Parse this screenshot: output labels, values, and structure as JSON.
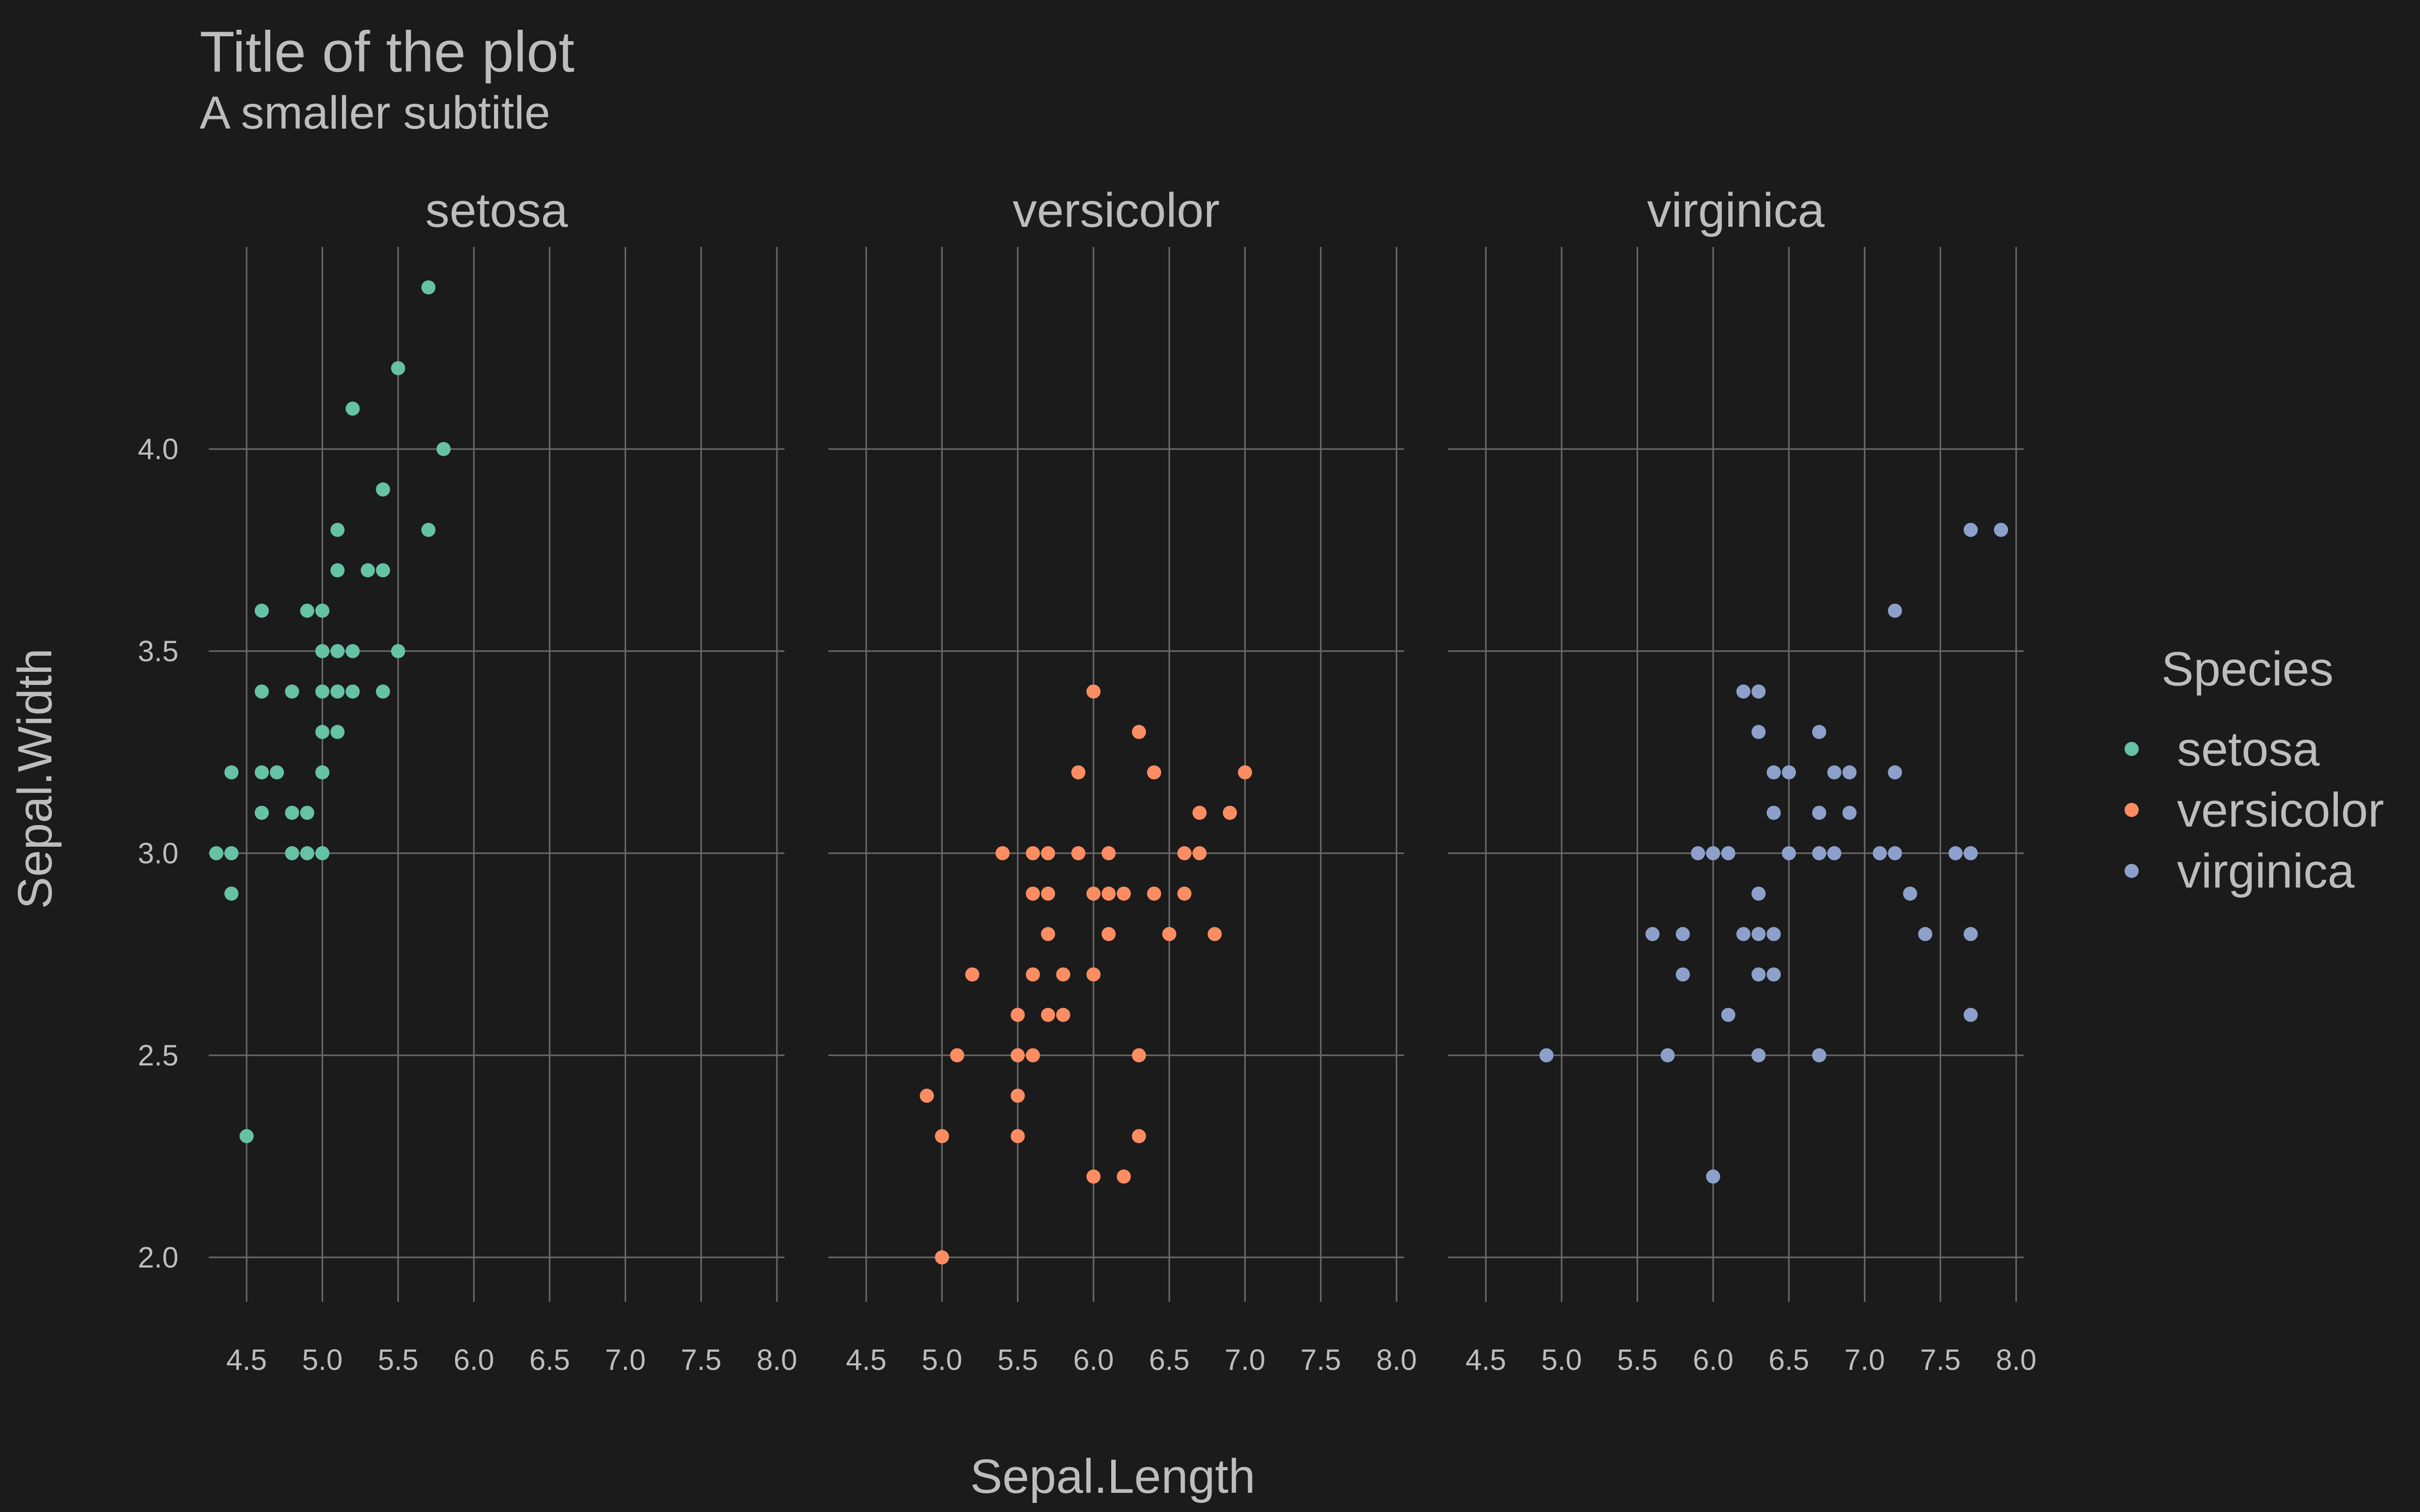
{
  "chart_data": {
    "type": "scatter",
    "title": "Title of the plot",
    "subtitle": "A smaller subtitle",
    "xlabel": "Sepal.Length",
    "ylabel": "Sepal.Width",
    "xlim": [
      4.25,
      8.05
    ],
    "ylim": [
      1.9,
      4.5
    ],
    "x_ticks": [
      "4.5",
      "5.0",
      "5.5",
      "6.0",
      "6.5",
      "7.0",
      "7.5",
      "8.0"
    ],
    "y_ticks": [
      "2.0",
      "2.5",
      "3.0",
      "3.5",
      "4.0"
    ],
    "grid": true,
    "legend": {
      "title": "Species",
      "position": "right"
    },
    "series": [
      {
        "name": "setosa",
        "color": "#66c2a5",
        "points": [
          [
            5.7,
            4.4
          ],
          [
            5.5,
            4.2
          ],
          [
            5.2,
            4.1
          ],
          [
            5.8,
            4.0
          ],
          [
            5.4,
            3.9
          ],
          [
            5.1,
            3.8
          ],
          [
            5.7,
            3.8
          ],
          [
            5.1,
            3.7
          ],
          [
            5.3,
            3.7
          ],
          [
            5.4,
            3.7
          ],
          [
            4.6,
            3.6
          ],
          [
            4.9,
            3.6
          ],
          [
            5.0,
            3.6
          ],
          [
            5.0,
            3.5
          ],
          [
            5.1,
            3.5
          ],
          [
            5.2,
            3.5
          ],
          [
            5.5,
            3.5
          ],
          [
            4.6,
            3.4
          ],
          [
            4.8,
            3.4
          ],
          [
            5.0,
            3.4
          ],
          [
            5.1,
            3.4
          ],
          [
            5.2,
            3.4
          ],
          [
            5.4,
            3.4
          ],
          [
            5.0,
            3.3
          ],
          [
            5.1,
            3.3
          ],
          [
            4.4,
            3.2
          ],
          [
            4.6,
            3.2
          ],
          [
            4.7,
            3.2
          ],
          [
            5.0,
            3.2
          ],
          [
            4.6,
            3.1
          ],
          [
            4.8,
            3.1
          ],
          [
            4.9,
            3.1
          ],
          [
            4.3,
            3.0
          ],
          [
            4.4,
            3.0
          ],
          [
            4.8,
            3.0
          ],
          [
            4.9,
            3.0
          ],
          [
            5.0,
            3.0
          ],
          [
            4.4,
            2.9
          ],
          [
            4.5,
            2.3
          ]
        ]
      },
      {
        "name": "versicolor",
        "color": "#fc8d62",
        "points": [
          [
            6.0,
            3.4
          ],
          [
            6.3,
            3.3
          ],
          [
            5.9,
            3.2
          ],
          [
            6.4,
            3.2
          ],
          [
            7.0,
            3.2
          ],
          [
            6.7,
            3.1
          ],
          [
            6.9,
            3.1
          ],
          [
            5.4,
            3.0
          ],
          [
            5.6,
            3.0
          ],
          [
            5.7,
            3.0
          ],
          [
            5.9,
            3.0
          ],
          [
            6.1,
            3.0
          ],
          [
            6.6,
            3.0
          ],
          [
            6.7,
            3.0
          ],
          [
            5.6,
            2.9
          ],
          [
            5.7,
            2.9
          ],
          [
            6.0,
            2.9
          ],
          [
            6.1,
            2.9
          ],
          [
            6.2,
            2.9
          ],
          [
            6.4,
            2.9
          ],
          [
            6.6,
            2.9
          ],
          [
            5.7,
            2.8
          ],
          [
            6.1,
            2.8
          ],
          [
            6.5,
            2.8
          ],
          [
            6.8,
            2.8
          ],
          [
            5.2,
            2.7
          ],
          [
            5.6,
            2.7
          ],
          [
            5.8,
            2.7
          ],
          [
            6.0,
            2.7
          ],
          [
            5.5,
            2.6
          ],
          [
            5.7,
            2.6
          ],
          [
            5.8,
            2.6
          ],
          [
            5.1,
            2.5
          ],
          [
            5.5,
            2.5
          ],
          [
            5.6,
            2.5
          ],
          [
            6.3,
            2.5
          ],
          [
            4.9,
            2.4
          ],
          [
            5.5,
            2.4
          ],
          [
            5.0,
            2.3
          ],
          [
            5.5,
            2.3
          ],
          [
            6.3,
            2.3
          ],
          [
            6.0,
            2.2
          ],
          [
            6.2,
            2.2
          ],
          [
            5.0,
            2.0
          ]
        ]
      },
      {
        "name": "virginica",
        "color": "#8da0cb",
        "points": [
          [
            7.7,
            3.8
          ],
          [
            7.9,
            3.8
          ],
          [
            7.2,
            3.6
          ],
          [
            6.2,
            3.4
          ],
          [
            6.3,
            3.4
          ],
          [
            6.3,
            3.3
          ],
          [
            6.7,
            3.3
          ],
          [
            6.4,
            3.2
          ],
          [
            6.5,
            3.2
          ],
          [
            6.8,
            3.2
          ],
          [
            6.9,
            3.2
          ],
          [
            7.2,
            3.2
          ],
          [
            6.4,
            3.1
          ],
          [
            6.7,
            3.1
          ],
          [
            6.9,
            3.1
          ],
          [
            5.9,
            3.0
          ],
          [
            6.0,
            3.0
          ],
          [
            6.1,
            3.0
          ],
          [
            6.5,
            3.0
          ],
          [
            6.7,
            3.0
          ],
          [
            6.8,
            3.0
          ],
          [
            7.1,
            3.0
          ],
          [
            7.2,
            3.0
          ],
          [
            7.6,
            3.0
          ],
          [
            7.7,
            3.0
          ],
          [
            6.3,
            2.9
          ],
          [
            7.3,
            2.9
          ],
          [
            5.6,
            2.8
          ],
          [
            5.8,
            2.8
          ],
          [
            6.2,
            2.8
          ],
          [
            6.3,
            2.8
          ],
          [
            6.4,
            2.8
          ],
          [
            7.4,
            2.8
          ],
          [
            7.7,
            2.8
          ],
          [
            5.8,
            2.7
          ],
          [
            6.3,
            2.7
          ],
          [
            6.4,
            2.7
          ],
          [
            6.1,
            2.6
          ],
          [
            7.7,
            2.6
          ],
          [
            4.9,
            2.5
          ],
          [
            5.7,
            2.5
          ],
          [
            6.3,
            2.5
          ],
          [
            6.7,
            2.5
          ],
          [
            6.0,
            2.2
          ]
        ]
      }
    ]
  }
}
